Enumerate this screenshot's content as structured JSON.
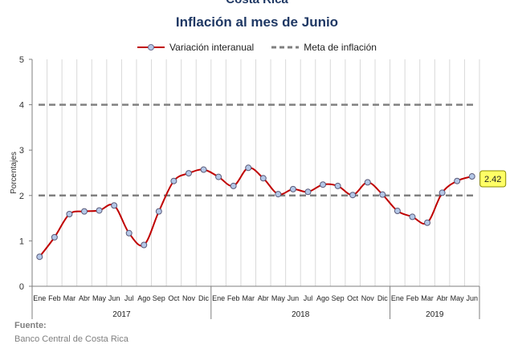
{
  "header": {
    "super_title": "Costa Rica",
    "title": "Inflación al mes de Junio"
  },
  "source": {
    "label": "Fuente:",
    "text": "Banco Central de Costa Rica"
  },
  "chart_data": {
    "type": "line",
    "title": "Inflación al mes de Junio",
    "xlabel": "",
    "ylabel": "Porcentajes",
    "ylim": [
      0,
      5
    ],
    "yticks": [
      0,
      1,
      2,
      3,
      4,
      5
    ],
    "grid": "vertical",
    "legend_position": "top",
    "categories": [
      "Ene",
      "Feb",
      "Mar",
      "Abr",
      "May",
      "Jun",
      "Jul",
      "Ago",
      "Sep",
      "Oct",
      "Nov",
      "Dic",
      "Ene",
      "Feb",
      "Mar",
      "Abr",
      "May",
      "Jun",
      "Jul",
      "Ago",
      "Sep",
      "Oct",
      "Nov",
      "Dic",
      "Ene",
      "Feb",
      "Mar",
      "Abr",
      "May",
      "Jun"
    ],
    "year_groups": [
      {
        "label": "2017",
        "start": 0,
        "end": 11
      },
      {
        "label": "2018",
        "start": 12,
        "end": 23
      },
      {
        "label": "2019",
        "start": 24,
        "end": 29
      }
    ],
    "series": [
      {
        "name": "Variación interanual",
        "color": "#c00000",
        "marker_color": "#b4c7e7",
        "values": [
          0.65,
          1.08,
          1.59,
          1.65,
          1.67,
          1.78,
          1.17,
          0.91,
          1.65,
          2.32,
          2.49,
          2.57,
          2.41,
          2.21,
          2.61,
          2.38,
          2.03,
          2.14,
          2.08,
          2.24,
          2.21,
          2.01,
          2.29,
          2.02,
          1.66,
          1.53,
          1.4,
          2.06,
          2.32,
          2.42
        ]
      },
      {
        "name": "Meta de inflación",
        "color": "#808080",
        "style": "dashed",
        "band": [
          2,
          4
        ]
      }
    ],
    "annotation": {
      "text": "2.42",
      "index": 29,
      "color": "#ffff66"
    }
  }
}
